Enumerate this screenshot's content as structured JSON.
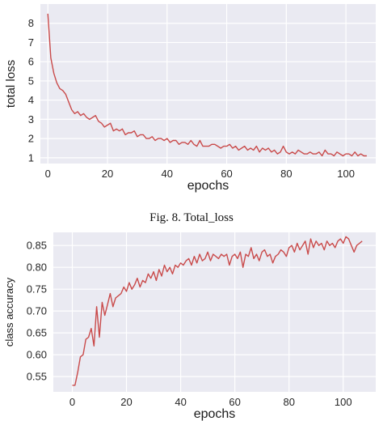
{
  "caption": "Fig. 8.   Total_loss",
  "chart_data": [
    {
      "type": "line",
      "xlabel": "epochs",
      "ylabel": "total loss",
      "xlim": [
        -2.5,
        110
      ],
      "ylim": [
        0.7,
        9.0
      ],
      "xticks": [
        0,
        20,
        40,
        60,
        80,
        100
      ],
      "yticks": [
        1,
        2,
        3,
        4,
        5,
        6,
        7,
        8
      ],
      "grid": true,
      "line_color": "#c94a4a",
      "background": "#eaeaf2",
      "series": [
        {
          "x": [
            0,
            1,
            2,
            3,
            4,
            5,
            6,
            7,
            8,
            9,
            10,
            11,
            12,
            13,
            14,
            15,
            16,
            17,
            18,
            19,
            20,
            21,
            22,
            23,
            24,
            25,
            26,
            27,
            28,
            29,
            30,
            31,
            32,
            33,
            34,
            35,
            36,
            37,
            38,
            39,
            40,
            41,
            42,
            43,
            44,
            45,
            46,
            47,
            48,
            49,
            50,
            51,
            52,
            53,
            54,
            55,
            56,
            57,
            58,
            59,
            60,
            61,
            62,
            63,
            64,
            65,
            66,
            67,
            68,
            69,
            70,
            71,
            72,
            73,
            74,
            75,
            76,
            77,
            78,
            79,
            80,
            81,
            82,
            83,
            84,
            85,
            86,
            87,
            88,
            89,
            90,
            91,
            92,
            93,
            94,
            95,
            96,
            97,
            98,
            99,
            100,
            101,
            102,
            103,
            104,
            105,
            106,
            107
          ],
          "values": [
            8.5,
            6.2,
            5.4,
            4.9,
            4.6,
            4.5,
            4.3,
            3.9,
            3.5,
            3.3,
            3.4,
            3.2,
            3.3,
            3.1,
            3.0,
            3.1,
            3.2,
            2.9,
            2.8,
            2.6,
            2.7,
            2.8,
            2.4,
            2.5,
            2.4,
            2.5,
            2.2,
            2.3,
            2.3,
            2.4,
            2.1,
            2.2,
            2.2,
            2.0,
            2.0,
            2.1,
            1.9,
            2.0,
            2.0,
            1.9,
            2.0,
            1.8,
            1.9,
            1.9,
            1.7,
            1.8,
            1.8,
            1.7,
            1.9,
            1.7,
            1.6,
            1.9,
            1.6,
            1.6,
            1.6,
            1.7,
            1.7,
            1.6,
            1.5,
            1.6,
            1.6,
            1.7,
            1.5,
            1.6,
            1.4,
            1.5,
            1.6,
            1.4,
            1.5,
            1.4,
            1.6,
            1.3,
            1.5,
            1.4,
            1.5,
            1.3,
            1.4,
            1.2,
            1.3,
            1.6,
            1.3,
            1.2,
            1.3,
            1.2,
            1.4,
            1.3,
            1.2,
            1.2,
            1.3,
            1.2,
            1.2,
            1.3,
            1.1,
            1.4,
            1.2,
            1.2,
            1.1,
            1.3,
            1.2,
            1.1,
            1.2,
            1.2,
            1.1,
            1.3,
            1.1,
            1.2,
            1.1,
            1.1
          ]
        }
      ]
    },
    {
      "type": "line",
      "xlabel": "epochs",
      "ylabel": "class accuracy",
      "xlim": [
        -7,
        112
      ],
      "ylim": [
        0.515,
        0.88
      ],
      "xticks": [
        0,
        20,
        40,
        60,
        80,
        100
      ],
      "yticks": [
        0.55,
        0.6,
        0.65,
        0.7,
        0.75,
        0.8,
        0.85
      ],
      "grid": true,
      "line_color": "#c94a4a",
      "background": "#eaeaf2",
      "series": [
        {
          "x": [
            0,
            1,
            2,
            3,
            4,
            5,
            6,
            7,
            8,
            9,
            10,
            11,
            12,
            13,
            14,
            15,
            16,
            17,
            18,
            19,
            20,
            21,
            22,
            23,
            24,
            25,
            26,
            27,
            28,
            29,
            30,
            31,
            32,
            33,
            34,
            35,
            36,
            37,
            38,
            39,
            40,
            41,
            42,
            43,
            44,
            45,
            46,
            47,
            48,
            49,
            50,
            51,
            52,
            53,
            54,
            55,
            56,
            57,
            58,
            59,
            60,
            61,
            62,
            63,
            64,
            65,
            66,
            67,
            68,
            69,
            70,
            71,
            72,
            73,
            74,
            75,
            76,
            77,
            78,
            79,
            80,
            81,
            82,
            83,
            84,
            85,
            86,
            87,
            88,
            89,
            90,
            91,
            92,
            93,
            94,
            95,
            96,
            97,
            98,
            99,
            100,
            101,
            102,
            103,
            104,
            105,
            106,
            107
          ],
          "values": [
            0.53,
            0.53,
            0.56,
            0.595,
            0.6,
            0.635,
            0.64,
            0.66,
            0.62,
            0.71,
            0.64,
            0.72,
            0.69,
            0.715,
            0.74,
            0.71,
            0.73,
            0.735,
            0.74,
            0.755,
            0.745,
            0.765,
            0.75,
            0.76,
            0.775,
            0.755,
            0.77,
            0.765,
            0.785,
            0.775,
            0.79,
            0.77,
            0.795,
            0.78,
            0.805,
            0.79,
            0.8,
            0.785,
            0.805,
            0.8,
            0.81,
            0.805,
            0.815,
            0.82,
            0.805,
            0.825,
            0.81,
            0.83,
            0.815,
            0.82,
            0.835,
            0.815,
            0.83,
            0.825,
            0.82,
            0.83,
            0.825,
            0.83,
            0.805,
            0.825,
            0.83,
            0.82,
            0.835,
            0.8,
            0.83,
            0.825,
            0.845,
            0.82,
            0.83,
            0.815,
            0.835,
            0.84,
            0.825,
            0.83,
            0.81,
            0.825,
            0.83,
            0.84,
            0.835,
            0.825,
            0.845,
            0.85,
            0.835,
            0.855,
            0.84,
            0.85,
            0.86,
            0.83,
            0.865,
            0.845,
            0.86,
            0.85,
            0.855,
            0.84,
            0.86,
            0.85,
            0.855,
            0.845,
            0.86,
            0.865,
            0.855,
            0.87,
            0.865,
            0.85,
            0.835,
            0.85,
            0.855,
            0.86
          ]
        }
      ]
    }
  ]
}
